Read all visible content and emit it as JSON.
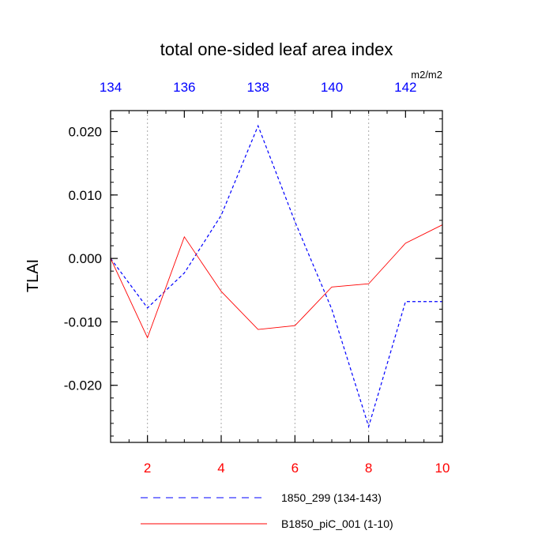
{
  "chart_data": {
    "type": "line",
    "title": "total one-sided leaf area index",
    "ylabel": "TLAI",
    "units": "m2/m2",
    "ylim": [
      -0.029,
      0.0233
    ],
    "yticks": [
      0.02,
      0.01,
      0.0,
      -0.01,
      -0.02
    ],
    "ytick_labels": [
      "0.020",
      "0.010",
      "0.000",
      "-0.010",
      "-0.020"
    ],
    "bottom_axis": {
      "range": [
        1,
        10
      ],
      "ticks": [
        2,
        4,
        6,
        8,
        10
      ],
      "tick_labels": [
        "2",
        "4",
        "6",
        "8",
        "10"
      ],
      "color": "#ff0000"
    },
    "top_axis": {
      "range": [
        134,
        143
      ],
      "ticks": [
        134,
        136,
        138,
        140,
        142
      ],
      "tick_labels": [
        "134",
        "136",
        "138",
        "140",
        "142"
      ],
      "color": "#0000ff"
    },
    "vertical_gridlines_at_top_axis": [
      135,
      137,
      139,
      141
    ],
    "series": [
      {
        "name": "1850_299 (134-143)",
        "axis": "top",
        "color": "#0000ff",
        "style": "dashed",
        "x": [
          134,
          135,
          136,
          137,
          138,
          139,
          140,
          141,
          142,
          143
        ],
        "y": [
          0.0,
          -0.0078,
          -0.0023,
          0.0068,
          0.0209,
          0.0058,
          -0.008,
          -0.0265,
          -0.0068,
          -0.0068
        ]
      },
      {
        "name": "B1850_piC_001 (1-10)",
        "axis": "bottom",
        "color": "#ff0000",
        "style": "solid",
        "x": [
          1,
          2,
          3,
          4,
          5,
          6,
          7,
          8,
          9,
          10
        ],
        "y": [
          0.0,
          -0.0125,
          0.0034,
          -0.0052,
          -0.0112,
          -0.0106,
          -0.0045,
          -0.004,
          0.0024,
          0.0053
        ]
      }
    ],
    "legend_position": "bottom"
  }
}
